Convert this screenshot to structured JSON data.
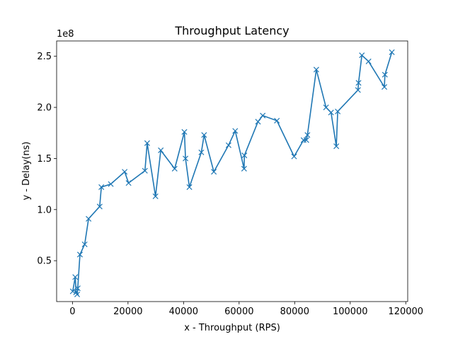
{
  "chart_data": {
    "type": "line",
    "title": "Throughput Latency",
    "xlabel": "x - Throughput (RPS)",
    "ylabel": "y - Delay(ns)",
    "y_offset_text": "1e8",
    "y_scale": 100000000,
    "xlim": [
      -5700,
      120700
    ],
    "ylim": [
      0.1,
      2.65
    ],
    "x_ticks": [
      0,
      20000,
      40000,
      60000,
      80000,
      100000,
      120000
    ],
    "x_tick_labels": [
      "0",
      "20000",
      "40000",
      "60000",
      "80000",
      "100000",
      "120000"
    ],
    "y_ticks": [
      0.5,
      1.0,
      1.5,
      2.0,
      2.5
    ],
    "y_tick_labels": [
      "0.5",
      "1.0",
      "1.5",
      "2.0",
      "2.5"
    ],
    "grid": false,
    "marker": "x",
    "line_color": "#1f77b4",
    "series": [
      {
        "x": [
          100,
          1000,
          1300,
          1700,
          1900,
          2700,
          4400,
          5800,
          9800,
          10400,
          13800,
          18800,
          20200,
          26100,
          26900,
          29900,
          31800,
          36800,
          40300,
          40700,
          42100,
          46400,
          47400,
          50900,
          56200,
          58600,
          61800,
          61900,
          66800,
          68500,
          73600,
          79800,
          83200,
          84200,
          84600,
          87800,
          91300,
          93100,
          95000,
          95500,
          102800,
          103000,
          104200,
          106600,
          112300,
          112500,
          115000
        ],
        "y": [
          0.2,
          0.34,
          0.19,
          0.17,
          0.23,
          0.56,
          0.66,
          0.91,
          1.03,
          1.22,
          1.25,
          1.37,
          1.26,
          1.38,
          1.65,
          1.13,
          1.58,
          1.4,
          1.76,
          1.5,
          1.22,
          1.56,
          1.73,
          1.37,
          1.63,
          1.77,
          1.4,
          1.53,
          1.86,
          1.92,
          1.87,
          1.52,
          1.68,
          1.68,
          1.73,
          2.37,
          2.0,
          1.95,
          1.62,
          1.96,
          2.17,
          2.24,
          2.51,
          2.45,
          2.2,
          2.32,
          2.54
        ]
      }
    ]
  }
}
